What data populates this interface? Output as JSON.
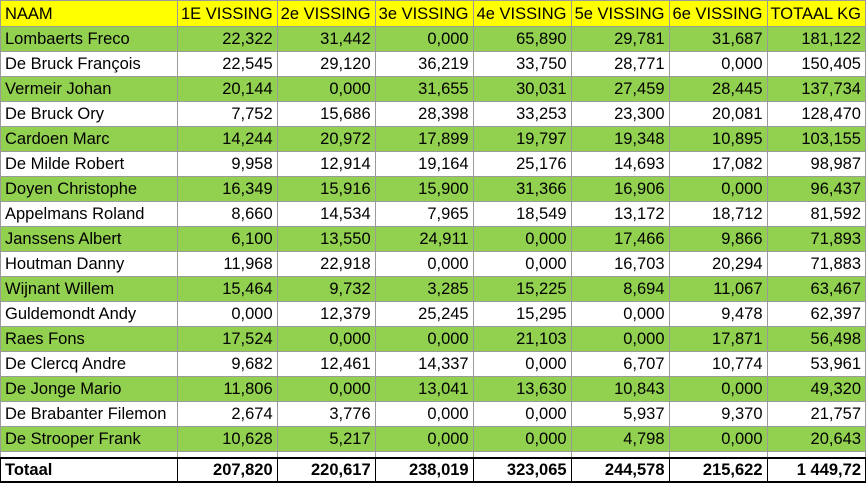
{
  "headers": [
    "NAAM",
    "1E VISSING",
    "2e VISSING",
    "3e VISSING",
    "4e VISSING",
    "5e VISSING",
    "6e VISSING",
    "TOTAAL KG"
  ],
  "rows": [
    {
      "name": "Lombaerts Freco",
      "values": [
        "22,322",
        "31,442",
        "0,000",
        "65,890",
        "29,781",
        "31,687",
        "181,122"
      ]
    },
    {
      "name": "De Bruck François",
      "values": [
        "22,545",
        "29,120",
        "36,219",
        "33,750",
        "28,771",
        "0,000",
        "150,405"
      ]
    },
    {
      "name": "Vermeir Johan",
      "values": [
        "20,144",
        "0,000",
        "31,655",
        "30,031",
        "27,459",
        "28,445",
        "137,734"
      ]
    },
    {
      "name": "De Bruck Ory",
      "values": [
        "7,752",
        "15,686",
        "28,398",
        "33,253",
        "23,300",
        "20,081",
        "128,470"
      ]
    },
    {
      "name": "Cardoen Marc",
      "values": [
        "14,244",
        "20,972",
        "17,899",
        "19,797",
        "19,348",
        "10,895",
        "103,155"
      ]
    },
    {
      "name": "De Milde Robert",
      "values": [
        "9,958",
        "12,914",
        "19,164",
        "25,176",
        "14,693",
        "17,082",
        "98,987"
      ]
    },
    {
      "name": "Doyen Christophe",
      "values": [
        "16,349",
        "15,916",
        "15,900",
        "31,366",
        "16,906",
        "0,000",
        "96,437"
      ]
    },
    {
      "name": "Appelmans Roland",
      "values": [
        "8,660",
        "14,534",
        "7,965",
        "18,549",
        "13,172",
        "18,712",
        "81,592"
      ]
    },
    {
      "name": "Janssens Albert",
      "values": [
        "6,100",
        "13,550",
        "24,911",
        "0,000",
        "17,466",
        "9,866",
        "71,893"
      ]
    },
    {
      "name": "Houtman Danny",
      "values": [
        "11,968",
        "22,918",
        "0,000",
        "0,000",
        "16,703",
        "20,294",
        "71,883"
      ]
    },
    {
      "name": "Wijnant Willem",
      "values": [
        "15,464",
        "9,732",
        "3,285",
        "15,225",
        "8,694",
        "11,067",
        "63,467"
      ]
    },
    {
      "name": "Guldemondt Andy",
      "values": [
        "0,000",
        "12,379",
        "25,245",
        "15,295",
        "0,000",
        "9,478",
        "62,397"
      ]
    },
    {
      "name": "Raes Fons",
      "values": [
        "17,524",
        "0,000",
        "0,000",
        "21,103",
        "0,000",
        "17,871",
        "56,498"
      ]
    },
    {
      "name": "De Clercq Andre",
      "values": [
        "9,682",
        "12,461",
        "14,337",
        "0,000",
        "6,707",
        "10,774",
        "53,961"
      ]
    },
    {
      "name": "De Jonge Mario",
      "values": [
        "11,806",
        "0,000",
        "13,041",
        "13,630",
        "10,843",
        "0,000",
        "49,320"
      ]
    },
    {
      "name": "De Brabanter Filemon",
      "values": [
        "2,674",
        "3,776",
        "0,000",
        "0,000",
        "5,937",
        "9,370",
        "21,757"
      ]
    },
    {
      "name": "De Strooper Frank",
      "values": [
        "10,628",
        "5,217",
        "0,000",
        "0,000",
        "4,798",
        "0,000",
        "20,643"
      ]
    }
  ],
  "total": {
    "label": "Totaal",
    "values": [
      "207,820",
      "220,617",
      "238,019",
      "323,065",
      "244,578",
      "215,622",
      "1 449,72"
    ]
  },
  "colors": {
    "header": "#ffff00",
    "green_row": "#92d050",
    "white_row": "#ffffff",
    "grid": "#9a9a9a"
  }
}
